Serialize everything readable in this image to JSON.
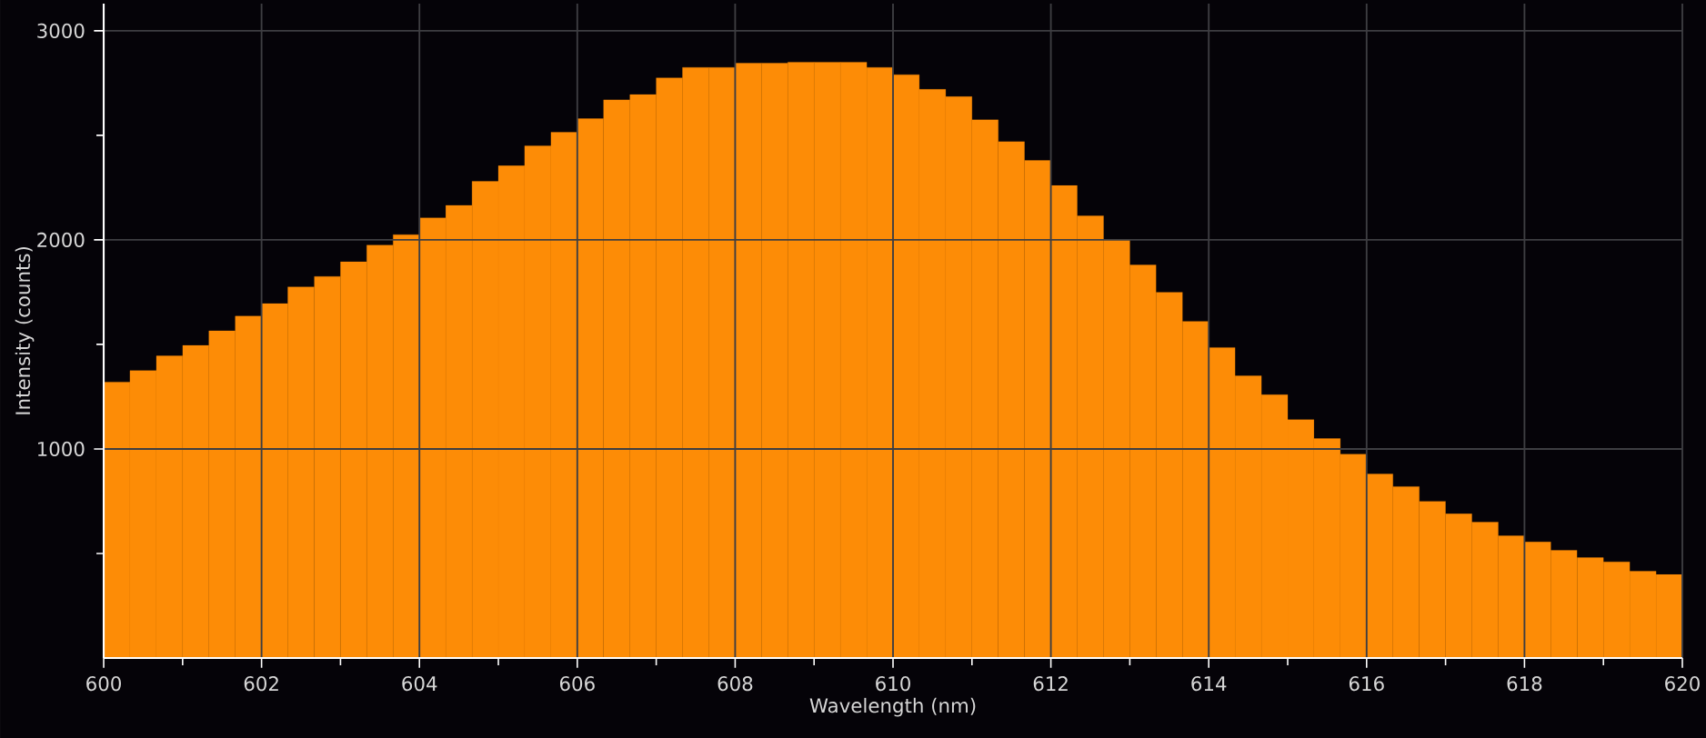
{
  "chart_data": {
    "type": "histogram",
    "xlabel": "Wavelength (nm)",
    "ylabel": "Intensity (counts)",
    "bins": [
      600,
      600.333,
      600.667,
      601,
      601.333,
      601.667,
      602,
      602.333,
      602.667,
      603,
      603.333,
      603.667,
      604,
      604.333,
      604.667,
      605,
      605.333,
      605.667,
      606,
      606.333,
      606.667,
      607,
      607.333,
      607.667,
      608,
      608.333,
      608.667,
      609,
      609.333,
      609.667,
      610,
      610.333,
      610.667,
      611,
      611.333,
      611.667,
      612,
      612.333,
      612.667,
      613,
      613.333,
      613.667,
      614,
      614.333,
      614.667,
      615,
      615.333,
      615.667,
      616,
      616.333,
      616.667,
      617,
      617.333,
      617.667,
      618,
      618.333,
      618.667,
      619,
      619.333,
      619.667,
      620
    ],
    "values": [
      1320,
      1375,
      1445,
      1495,
      1565,
      1635,
      1695,
      1775,
      1825,
      1895,
      1975,
      2025,
      2105,
      2165,
      2280,
      2355,
      2450,
      2515,
      2580,
      2670,
      2695,
      2775,
      2825,
      2825,
      2845,
      2845,
      2850,
      2850,
      2850,
      2825,
      2790,
      2720,
      2685,
      2575,
      2470,
      2380,
      2260,
      2115,
      2000,
      1880,
      1750,
      1610,
      1485,
      1350,
      1260,
      1140,
      1050,
      975,
      880,
      820,
      750,
      690,
      650,
      585,
      555,
      515,
      480,
      460,
      415,
      400
    ],
    "color": "#fd8c06",
    "xlim": [
      600,
      620
    ],
    "xticks": [
      600,
      {
        "value": 601,
        "label": null
      },
      602,
      {
        "value": 603,
        "label": null
      },
      604,
      {
        "value": 605,
        "label": null
      },
      606,
      {
        "value": 607,
        "label": null
      },
      608,
      {
        "value": 609,
        "label": null
      },
      610,
      {
        "value": 611,
        "label": null
      },
      612,
      {
        "value": 613,
        "label": null
      },
      614,
      {
        "value": 615,
        "label": null
      },
      616,
      {
        "value": 617,
        "label": null
      },
      618,
      {
        "value": 619,
        "label": null
      },
      620
    ],
    "ylim": [
      0,
      3130
    ],
    "yticks": [
      {
        "value": 500,
        "label": null
      },
      1000,
      {
        "value": 1500,
        "label": null
      },
      2000,
      {
        "value": 2500,
        "label": null
      },
      3000
    ],
    "grid": true
  }
}
